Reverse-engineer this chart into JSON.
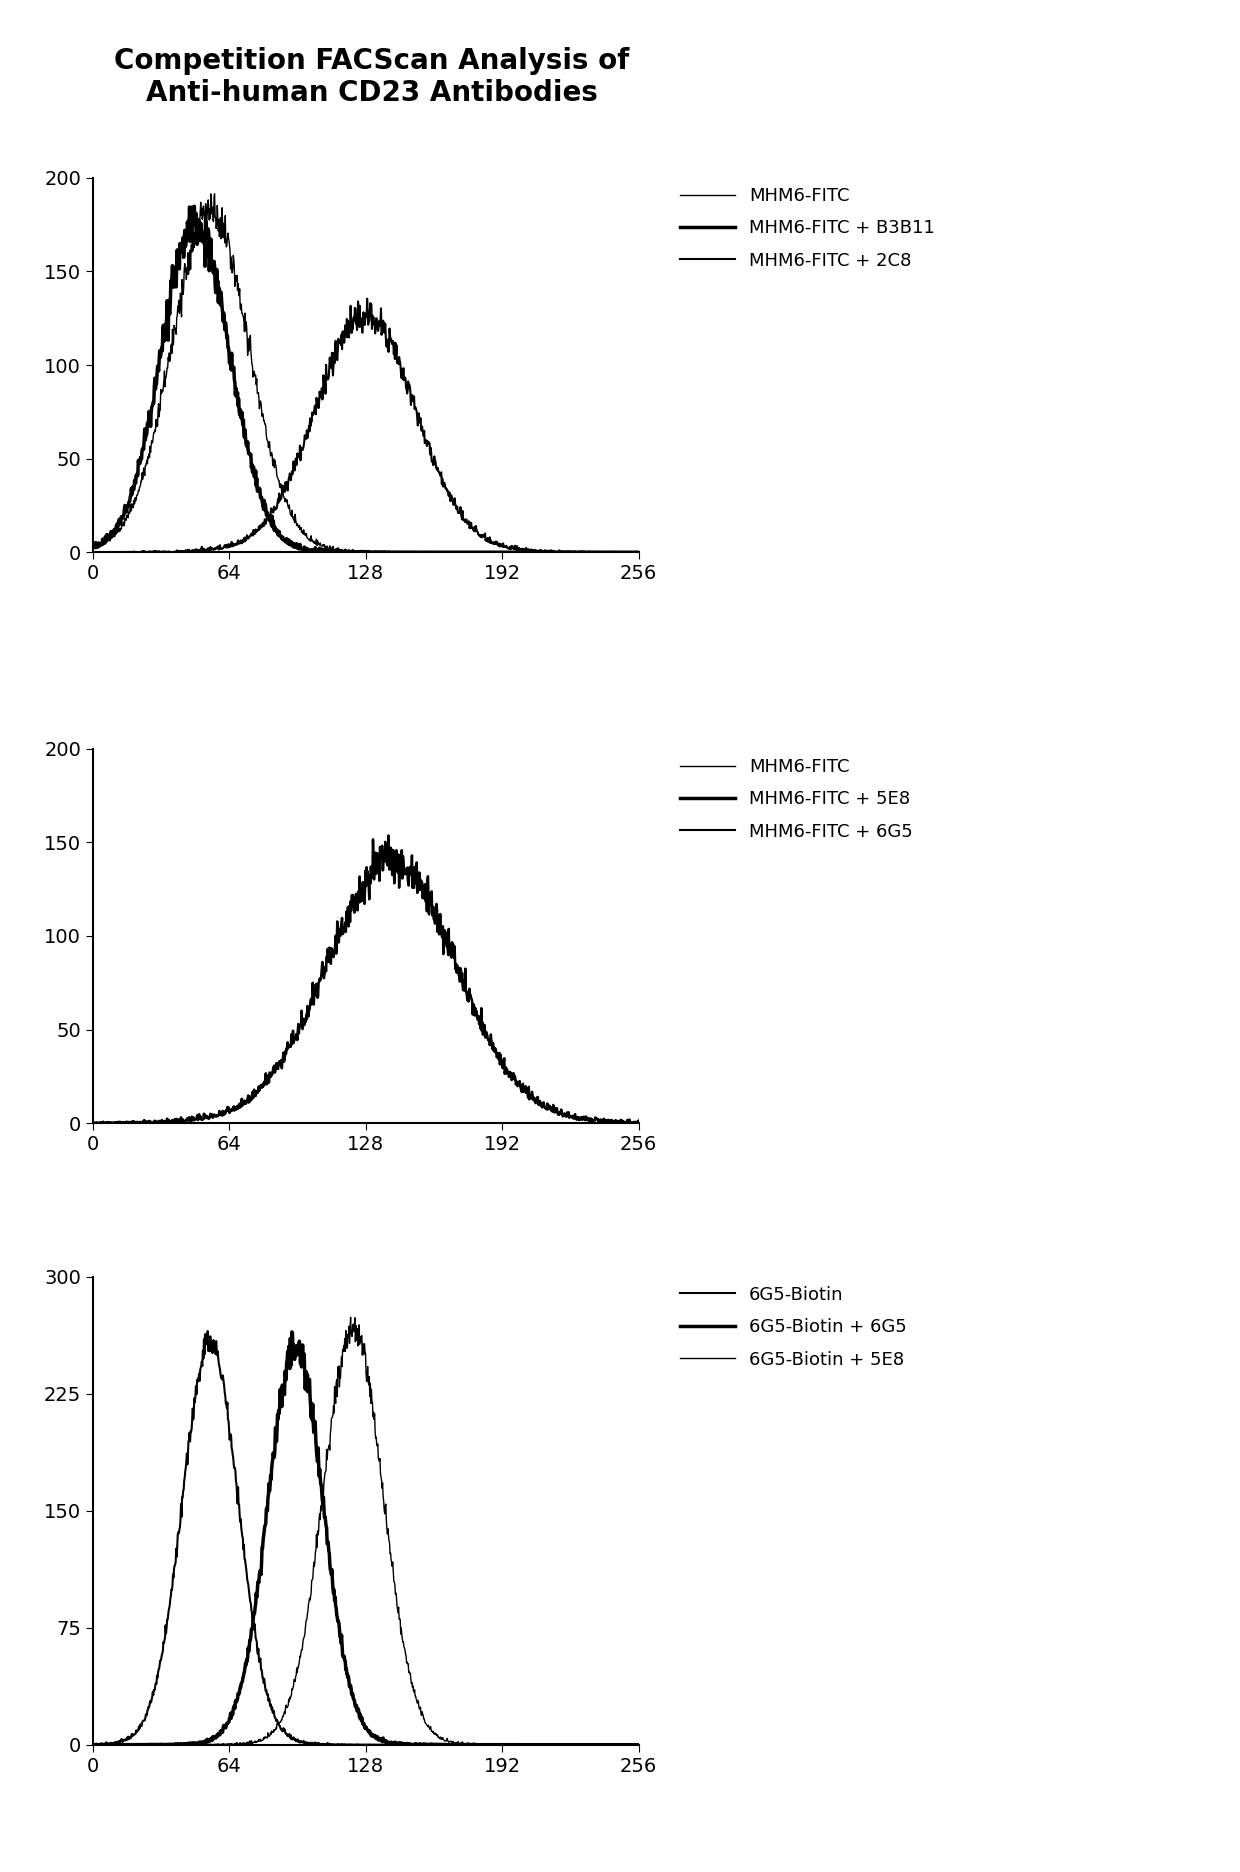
{
  "title": "Competition FACScan Analysis of\nAnti-human CD23 Antibodies",
  "title_fontsize": 20,
  "panels": [
    {
      "ylim": [
        0,
        200
      ],
      "yticks": [
        0,
        50,
        100,
        150,
        200
      ],
      "xlim": [
        0,
        256
      ],
      "xticks": [
        0,
        64,
        128,
        192,
        256
      ],
      "legend_labels": [
        "MHM6-FITC",
        "MHM6-FITC + B3B11",
        "MHM6-FITC + 2C8"
      ],
      "legend_lws": [
        1.0,
        2.5,
        1.5
      ]
    },
    {
      "ylim": [
        0,
        200
      ],
      "yticks": [
        0,
        50,
        100,
        150,
        200
      ],
      "xlim": [
        0,
        256
      ],
      "xticks": [
        0,
        64,
        128,
        192,
        256
      ],
      "legend_labels": [
        "MHM6-FITC",
        "MHM6-FITC + 5E8",
        "MHM6-FITC + 6G5"
      ],
      "legend_lws": [
        1.0,
        2.5,
        1.5
      ]
    },
    {
      "ylim": [
        0,
        300
      ],
      "yticks": [
        0,
        75,
        150,
        225,
        300
      ],
      "xlim": [
        0,
        256
      ],
      "xticks": [
        0,
        64,
        128,
        192,
        256
      ],
      "legend_labels": [
        "6G5-Biotin",
        "6G5-Biotin + 6G5",
        "6G5-Biotin + 5E8"
      ],
      "legend_lws": [
        1.5,
        2.5,
        1.0
      ]
    }
  ],
  "bg_color": "#ffffff"
}
